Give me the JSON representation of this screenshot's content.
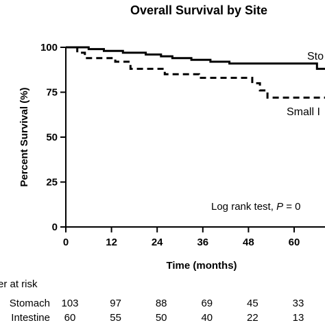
{
  "chart_data": {
    "type": "line",
    "title": "Overall Survival by Site",
    "xlabel": "Time (months)",
    "ylabel": "Percent Survival (%)",
    "xlim": [
      0,
      72
    ],
    "ylim": [
      0,
      100
    ],
    "x_ticks": [
      "0",
      "12",
      "24",
      "36",
      "48",
      "60"
    ],
    "y_ticks": [
      "0",
      "25",
      "50",
      "75",
      "100"
    ],
    "grid": false,
    "series": [
      {
        "name": "Stomach",
        "label_text": "Sto",
        "style": "solid",
        "color": "#000000",
        "points": [
          [
            0,
            100
          ],
          [
            6,
            100
          ],
          [
            6,
            99
          ],
          [
            10,
            99
          ],
          [
            10,
            98
          ],
          [
            15,
            98
          ],
          [
            15,
            97
          ],
          [
            21,
            97
          ],
          [
            21,
            96
          ],
          [
            25,
            96
          ],
          [
            25,
            95
          ],
          [
            28,
            95
          ],
          [
            28,
            94
          ],
          [
            33,
            94
          ],
          [
            33,
            93
          ],
          [
            38,
            93
          ],
          [
            38,
            92
          ],
          [
            43,
            92
          ],
          [
            43,
            91
          ],
          [
            66,
            91
          ],
          [
            66,
            88
          ],
          [
            72,
            88
          ]
        ]
      },
      {
        "name": "Small Intestine",
        "label_text": "Small I",
        "style": "dashed",
        "color": "#000000",
        "points": [
          [
            0,
            100
          ],
          [
            3,
            100
          ],
          [
            3,
            97
          ],
          [
            5,
            97
          ],
          [
            5,
            94
          ],
          [
            13,
            94
          ],
          [
            13,
            92
          ],
          [
            17,
            92
          ],
          [
            17,
            88
          ],
          [
            26,
            88
          ],
          [
            26,
            85
          ],
          [
            35,
            85
          ],
          [
            35,
            83
          ],
          [
            49,
            83
          ],
          [
            49,
            80
          ],
          [
            51,
            80
          ],
          [
            51,
            76
          ],
          [
            53,
            76
          ],
          [
            53,
            72
          ],
          [
            72,
            72
          ]
        ]
      }
    ],
    "annotation": {
      "prefix": "Log rank test, ",
      "p_symbol": "P",
      "suffix": " = 0"
    },
    "risk_table": {
      "title": "er at risk",
      "rows": [
        {
          "label": "Stomach",
          "values": [
            "103",
            "97",
            "88",
            "69",
            "45",
            "33"
          ]
        },
        {
          "label": "Intestine",
          "values": [
            "60",
            "55",
            "50",
            "40",
            "22",
            "13"
          ]
        }
      ]
    }
  }
}
